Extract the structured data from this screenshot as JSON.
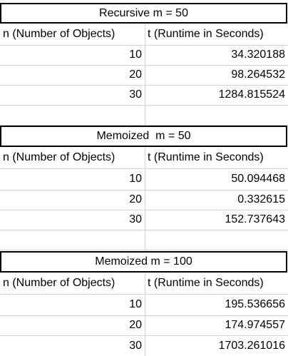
{
  "tables": [
    {
      "title": "Recursive m = 50",
      "col1_header": "n (Number of Objects)",
      "col2_header": "t (Runtime in Seconds)",
      "rows": [
        {
          "n": "10",
          "t": "34.320188"
        },
        {
          "n": "20",
          "t": "98.264532"
        },
        {
          "n": "30",
          "t": "1284.815524"
        }
      ]
    },
    {
      "title": "Memoized  m = 50",
      "col1_header": "n (Number of Objects)",
      "col2_header": "t (Runtime in Seconds)",
      "rows": [
        {
          "n": "10",
          "t": "50.094468"
        },
        {
          "n": "20",
          "t": "0.332615"
        },
        {
          "n": "30",
          "t": "152.737643"
        }
      ]
    },
    {
      "title": "Memoized m = 100",
      "col1_header": "n (Number of Objects)",
      "col2_header": "t (Runtime in Seconds)",
      "rows": [
        {
          "n": "10",
          "t": "195.536656"
        },
        {
          "n": "20",
          "t": "174.974557"
        },
        {
          "n": "30",
          "t": "1703.261016"
        }
      ]
    }
  ]
}
